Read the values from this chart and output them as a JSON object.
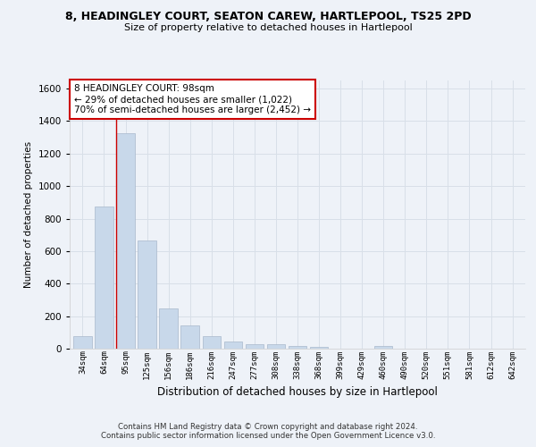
{
  "title_line1": "8, HEADINGLEY COURT, SEATON CAREW, HARTLEPOOL, TS25 2PD",
  "title_line2": "Size of property relative to detached houses in Hartlepool",
  "xlabel": "Distribution of detached houses by size in Hartlepool",
  "ylabel": "Number of detached properties",
  "categories": [
    "34sqm",
    "64sqm",
    "95sqm",
    "125sqm",
    "156sqm",
    "186sqm",
    "216sqm",
    "247sqm",
    "277sqm",
    "308sqm",
    "338sqm",
    "368sqm",
    "399sqm",
    "429sqm",
    "460sqm",
    "490sqm",
    "520sqm",
    "551sqm",
    "581sqm",
    "612sqm",
    "642sqm"
  ],
  "values": [
    75,
    875,
    1325,
    665,
    245,
    145,
    75,
    45,
    25,
    25,
    15,
    10,
    0,
    0,
    15,
    0,
    0,
    0,
    0,
    0,
    0
  ],
  "bar_color": "#c8d8ea",
  "bar_edge_color": "#a8b8cc",
  "grid_color": "#d8dfe8",
  "background_color": "#eef2f8",
  "annotation_text": "8 HEADINGLEY COURT: 98sqm\n← 29% of detached houses are smaller (1,022)\n70% of semi-detached houses are larger (2,452) →",
  "annotation_box_color": "#ffffff",
  "annotation_box_edge": "#cc0000",
  "ylim": [
    0,
    1650
  ],
  "yticks": [
    0,
    200,
    400,
    600,
    800,
    1000,
    1200,
    1400,
    1600
  ],
  "footer_line1": "Contains HM Land Registry data © Crown copyright and database right 2024.",
  "footer_line2": "Contains public sector information licensed under the Open Government Licence v3.0."
}
